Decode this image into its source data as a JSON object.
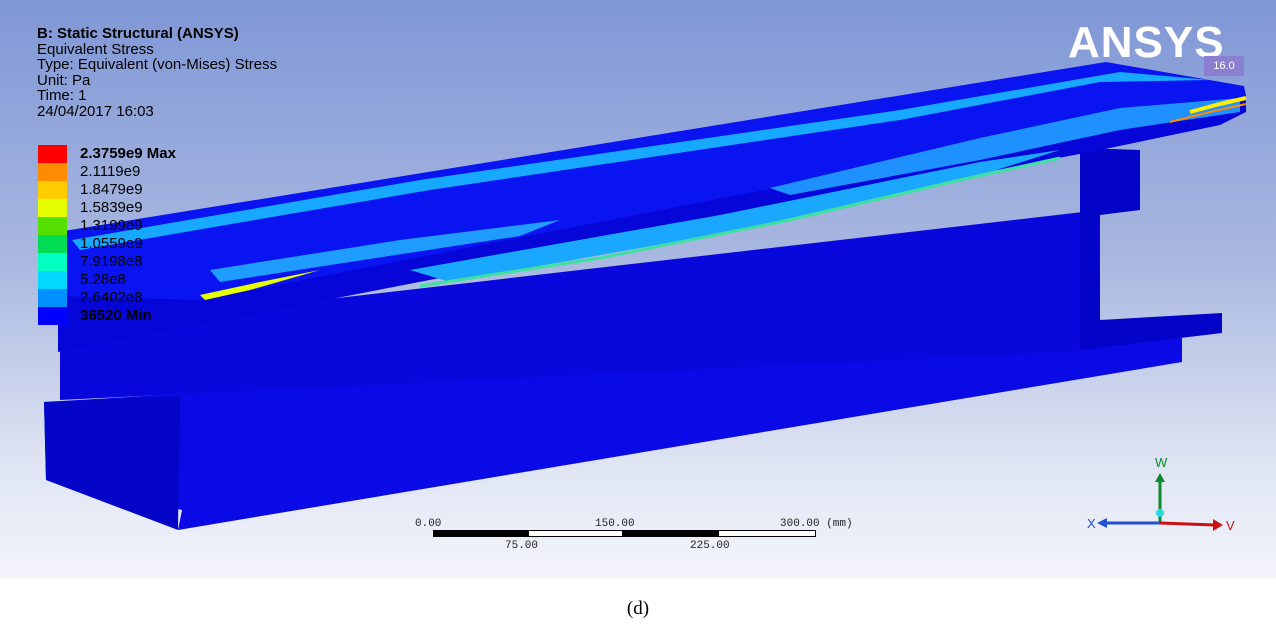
{
  "header": {
    "title": "B: Static Structural (ANSYS)",
    "result": "Equivalent Stress",
    "type": "Type: Equivalent (von-Mises) Stress",
    "unit": "Unit: Pa",
    "time": "Time: 1",
    "datetime": "24/04/2017 16:03"
  },
  "legend": {
    "items": [
      {
        "label": "2.3759e9 Max",
        "color": "#ff0000"
      },
      {
        "label": "2.1119e9",
        "color": "#ff8c00"
      },
      {
        "label": "1.8479e9",
        "color": "#ffcc00"
      },
      {
        "label": "1.5839e9",
        "color": "#e6ff00"
      },
      {
        "label": "1.3199e9",
        "color": "#55e000"
      },
      {
        "label": "1.0559e9",
        "color": "#00dd55"
      },
      {
        "label": "7.9198e8",
        "color": "#00ffc0"
      },
      {
        "label": "5.28e8",
        "color": "#00d8ff"
      },
      {
        "label": "2.6402e8",
        "color": "#0090ff"
      },
      {
        "label": "36520 Min",
        "color": "#0000ff"
      }
    ]
  },
  "logo": {
    "name": "ANSYS",
    "version": "16.0"
  },
  "scale": {
    "top_labels": [
      "0.00",
      "150.00",
      "300.00 (mm)"
    ],
    "bottom_labels": [
      "75.00",
      "225.00"
    ]
  },
  "triad": {
    "labels": [
      "W",
      "X",
      "V"
    ]
  },
  "caption": "(d)"
}
